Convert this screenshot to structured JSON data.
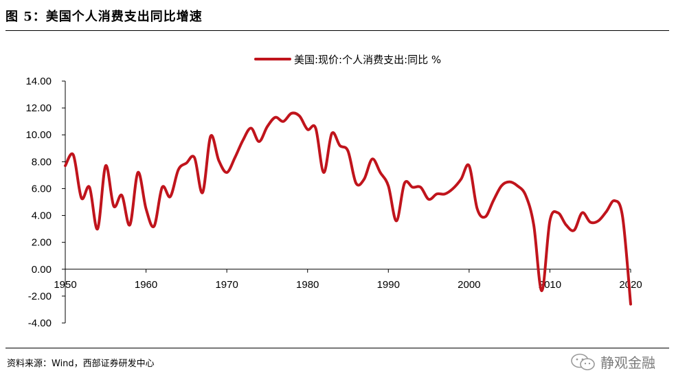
{
  "figure": {
    "title": "图 5：美国个人消费支出同比增速",
    "source": "资料来源：Wind，西部证券研发中心",
    "watermark": "静观金融"
  },
  "chart_data": {
    "type": "line",
    "title": "",
    "xlabel": "",
    "ylabel": "",
    "ylim": [
      -4,
      14
    ],
    "xlim": [
      1950,
      2020
    ],
    "y_ticks": [
      "14.00",
      "12.00",
      "10.00",
      "8.00",
      "6.00",
      "4.00",
      "2.00",
      "0.00",
      "-2.00",
      "-4.00"
    ],
    "x_ticks": [
      "1950",
      "1960",
      "1970",
      "1980",
      "1990",
      "2000",
      "2010",
      "2020"
    ],
    "legend_position": "top-center",
    "grid": false,
    "series": [
      {
        "name": "美国:现价:个人消费支出:同比 %",
        "color": "#c0141c",
        "x": [
          1950,
          1951,
          1952,
          1953,
          1954,
          1955,
          1956,
          1957,
          1958,
          1959,
          1960,
          1961,
          1962,
          1963,
          1964,
          1965,
          1966,
          1967,
          1968,
          1969,
          1970,
          1971,
          1972,
          1973,
          1974,
          1975,
          1976,
          1977,
          1978,
          1979,
          1980,
          1981,
          1982,
          1983,
          1984,
          1985,
          1986,
          1987,
          1988,
          1989,
          1990,
          1991,
          1992,
          1993,
          1994,
          1995,
          1996,
          1997,
          1998,
          1999,
          2000,
          2001,
          2002,
          2003,
          2004,
          2005,
          2006,
          2007,
          2008,
          2009,
          2010,
          2011,
          2012,
          2013,
          2014,
          2015,
          2016,
          2017,
          2018,
          2019,
          2020
        ],
        "values": [
          7.7,
          8.5,
          5.3,
          6.1,
          3.0,
          7.7,
          4.7,
          5.5,
          3.3,
          7.2,
          4.5,
          3.2,
          6.1,
          5.4,
          7.4,
          7.9,
          8.3,
          5.7,
          9.9,
          8.1,
          7.2,
          8.3,
          9.6,
          10.5,
          9.5,
          10.6,
          11.3,
          11.0,
          11.6,
          11.4,
          10.4,
          10.5,
          7.2,
          10.1,
          9.2,
          8.8,
          6.4,
          6.7,
          8.2,
          7.2,
          6.2,
          3.6,
          6.4,
          6.1,
          6.1,
          5.2,
          5.6,
          5.6,
          6.0,
          6.7,
          7.7,
          4.5,
          3.9,
          5.1,
          6.2,
          6.5,
          6.2,
          5.5,
          3.3,
          -1.6,
          3.6,
          4.2,
          3.3,
          2.9,
          4.2,
          3.5,
          3.6,
          4.3,
          5.1,
          3.9,
          -2.6
        ]
      }
    ]
  }
}
